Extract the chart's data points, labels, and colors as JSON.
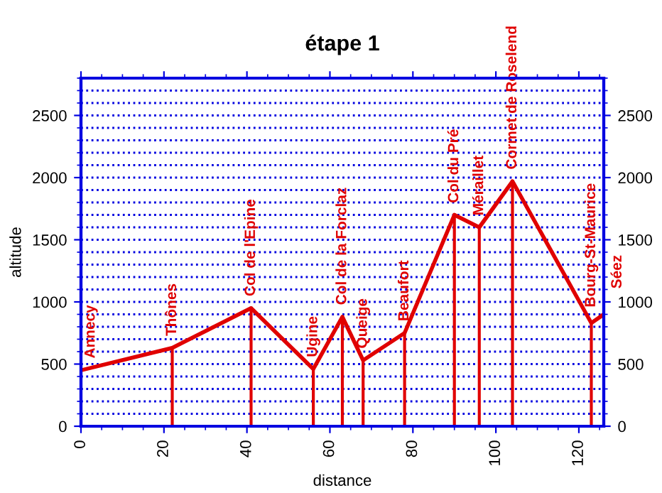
{
  "chart_data": {
    "type": "line",
    "title": "étape 1",
    "xlabel": "distance",
    "ylabel": "altitude",
    "series": [
      {
        "color": "#e00000",
        "x": [
          0,
          22,
          41,
          56,
          63,
          68,
          78,
          90,
          96,
          104,
          123,
          126
        ],
        "values": [
          450,
          630,
          950,
          460,
          880,
          530,
          750,
          1700,
          1600,
          1970,
          830,
          900
        ]
      }
    ],
    "annotations": [
      {
        "text": "Annecy",
        "x": 0,
        "y": 450
      },
      {
        "text": "Thônes",
        "x": 22,
        "y": 630
      },
      {
        "text": "Col de l'Epine",
        "x": 41,
        "y": 950
      },
      {
        "text": "Ugine",
        "x": 56,
        "y": 460
      },
      {
        "text": "Col de la Forclaz",
        "x": 63,
        "y": 880
      },
      {
        "text": "Queige",
        "x": 68,
        "y": 530
      },
      {
        "text": "Beaufort",
        "x": 78,
        "y": 750
      },
      {
        "text": "Col du Pré",
        "x": 90,
        "y": 1700
      },
      {
        "text": "Méraillet",
        "x": 96,
        "y": 1600
      },
      {
        "text": "Cormet de Roselend",
        "x": 104,
        "y": 1970
      },
      {
        "text": "Bourg-St-Maurice",
        "x": 123,
        "y": 830
      },
      {
        "text": "Séez",
        "x": 126,
        "y": 900
      }
    ],
    "xlim": [
      0,
      126
    ],
    "xticks": [
      0,
      20,
      40,
      60,
      80,
      100,
      120
    ],
    "ylim": [
      0,
      2800
    ],
    "yticks": [
      0,
      500,
      1000,
      1500,
      2000,
      2500
    ],
    "y2lim": [
      0,
      2800
    ],
    "y2ticks": [
      0,
      500,
      1000,
      1500,
      2000,
      2500
    ],
    "grid": "y",
    "marker": "none",
    "line_style": "solid"
  }
}
